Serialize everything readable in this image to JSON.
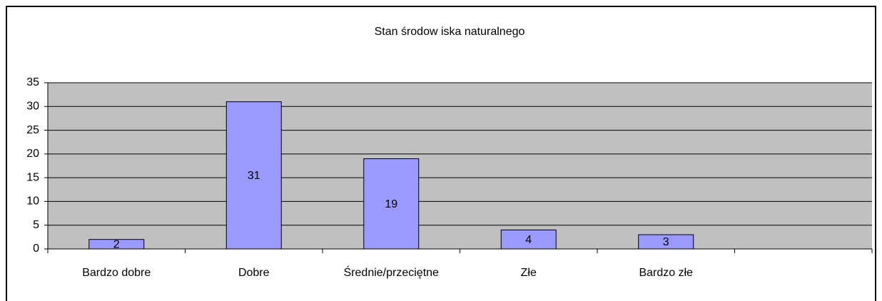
{
  "chart_data": {
    "type": "bar",
    "title": "Stan środow iska naturalnego",
    "categories": [
      "Bardzo dobre",
      "Dobre",
      "Średnie/przeciętne",
      "Złe",
      "Bardzo złe",
      null
    ],
    "values": [
      2,
      31,
      19,
      4,
      3,
      null
    ],
    "color": "#9999ff",
    "ylim": [
      0,
      35
    ],
    "yticks": [
      0,
      5,
      10,
      15,
      20,
      25,
      30,
      35
    ],
    "grid": true
  }
}
